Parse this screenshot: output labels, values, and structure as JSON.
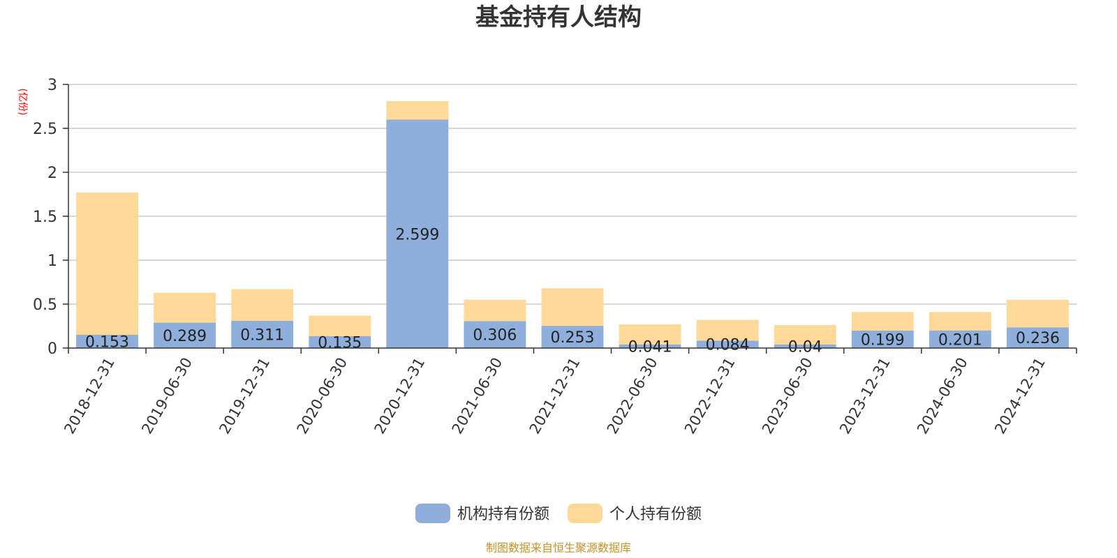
{
  "chart_data": {
    "type": "bar",
    "stacked": true,
    "title": "基金持有人结构",
    "unit_label": "(亿份)",
    "categories": [
      "2018-12-31",
      "2019-06-30",
      "2019-12-31",
      "2020-06-30",
      "2020-12-31",
      "2021-06-30",
      "2021-12-31",
      "2022-06-30",
      "2022-12-31",
      "2023-06-30",
      "2023-12-31",
      "2024-06-30",
      "2024-12-31"
    ],
    "series": [
      {
        "name": "机构持有份额",
        "color": "#8eaedb",
        "values": [
          0.153,
          0.289,
          0.311,
          0.135,
          2.599,
          0.306,
          0.253,
          0.041,
          0.084,
          0.04,
          0.199,
          0.201,
          0.236
        ],
        "labels_shown": true
      },
      {
        "name": "个人持有份额",
        "color": "#ffd998",
        "values": [
          1.617,
          0.341,
          0.359,
          0.235,
          0.211,
          0.244,
          0.427,
          0.229,
          0.236,
          0.221,
          0.211,
          0.209,
          0.314
        ],
        "labels_shown": false
      }
    ],
    "yticks": [
      "0",
      "0.5",
      "1",
      "1.5",
      "2",
      "2.5",
      "3"
    ],
    "ylim": [
      0,
      3
    ],
    "grid": true,
    "legend_position": "bottom-center"
  },
  "source_text": "制图数据来自恒生聚源数据库",
  "colors": {
    "unit": "#ff0000",
    "source": "#c8922a",
    "grid": "#cccccc",
    "axis": "#333333"
  }
}
